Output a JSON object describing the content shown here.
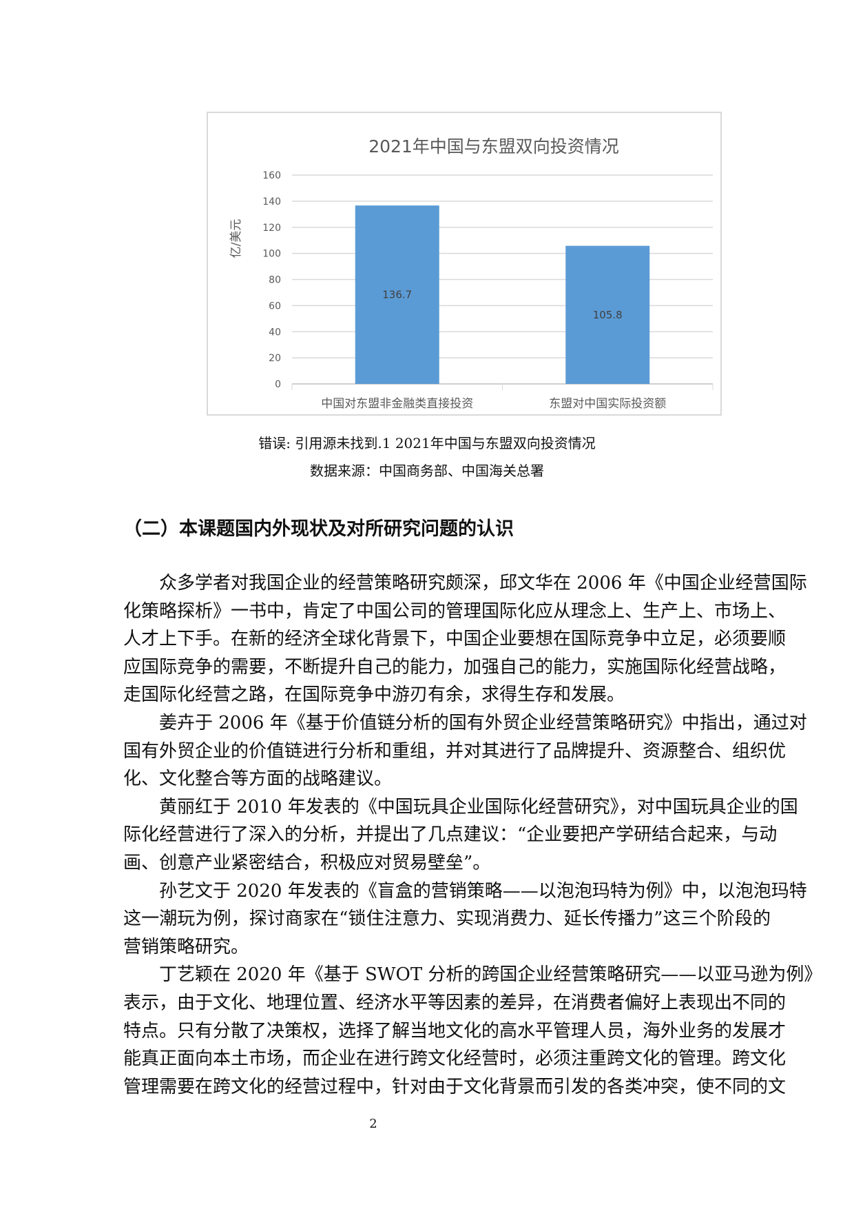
{
  "chart_data": {
    "type": "bar",
    "title": "2021年中国与东盟双向投资情况",
    "ylabel": "亿/美元",
    "xlabel": "",
    "categories": [
      "中国对东盟非金融类直接投资",
      "东盟对中国实际投资额"
    ],
    "values": [
      136.7,
      105.8
    ],
    "data_labels": [
      "136.7",
      "105.8"
    ],
    "ylim": [
      0,
      160
    ],
    "yticks": [
      "0",
      "20",
      "40",
      "60",
      "80",
      "100",
      "120",
      "140",
      "160"
    ],
    "grid": true,
    "bar_color": "#5b9bd5",
    "legend": "none"
  },
  "caption": "错误: 引用源未找到.1 2021年中国与东盟双向投资情况",
  "source": "数据来源：中国商务部、中国海关总署",
  "heading": "（二）本课题国内外现状及对所研究问题的认识",
  "paragraphs": [
    [
      "众多学者对我国企业的经营策略研究颇深，邱文华在 2006 年《中国企业经营国际",
      "化策略探析》一书中，肯定了中国公司的管理国际化应从理念上、生产上、市场上、",
      "人才上下手。在新的经济全球化背景下，中国企业要想在国际竞争中立足，必须要顺",
      "应国际竞争的需要，不断提升自己的能力，加强自己的能力，实施国际化经营战略，",
      "走国际化经营之路，在国际竞争中游刃有余，求得生存和发展。"
    ],
    [
      "姜卉于 2006 年《基于价值链分析的国有外贸企业经营策略研究》中指出，通过对",
      "国有外贸企业的价值链进行分析和重组，并对其进行了品牌提升、资源整合、组织优",
      "化、文化整合等方面的战略建议。"
    ],
    [
      "黄丽红于 2010 年发表的《中国玩具企业国际化经营研究》，对中国玩具企业的国",
      "际化经营进行了深入的分析，并提出了几点建议：“企业要把产学研结合起来，与动",
      "画、创意产业紧密结合，积极应对贸易壁垒”。"
    ],
    [
      "孙艺文于 2020 年发表的《盲盒的营销策略——以泡泡玛特为例》中，以泡泡玛特",
      "这一潮玩为例，探讨商家在“锁住注意力、实现消费力、延长传播力”这三个阶段的",
      "营销策略研究。"
    ],
    [
      "丁艺颖在 2020 年《基于 SWOT 分析的跨国企业经营策略研究——以亚马逊为例》",
      "表示，由于文化、地理位置、经济水平等因素的差异，在消费者偏好上表现出不同的",
      "特点。只有分散了决策权，选择了解当地文化的高水平管理人员，海外业务的发展才",
      "能真正面向本土市场，而企业在进行跨文化经营时，必须注重跨文化的管理。跨文化",
      "管理需要在跨文化的经营过程中，针对由于文化背景而引发的各类冲突，使不同的文"
    ]
  ],
  "page_number": "2"
}
